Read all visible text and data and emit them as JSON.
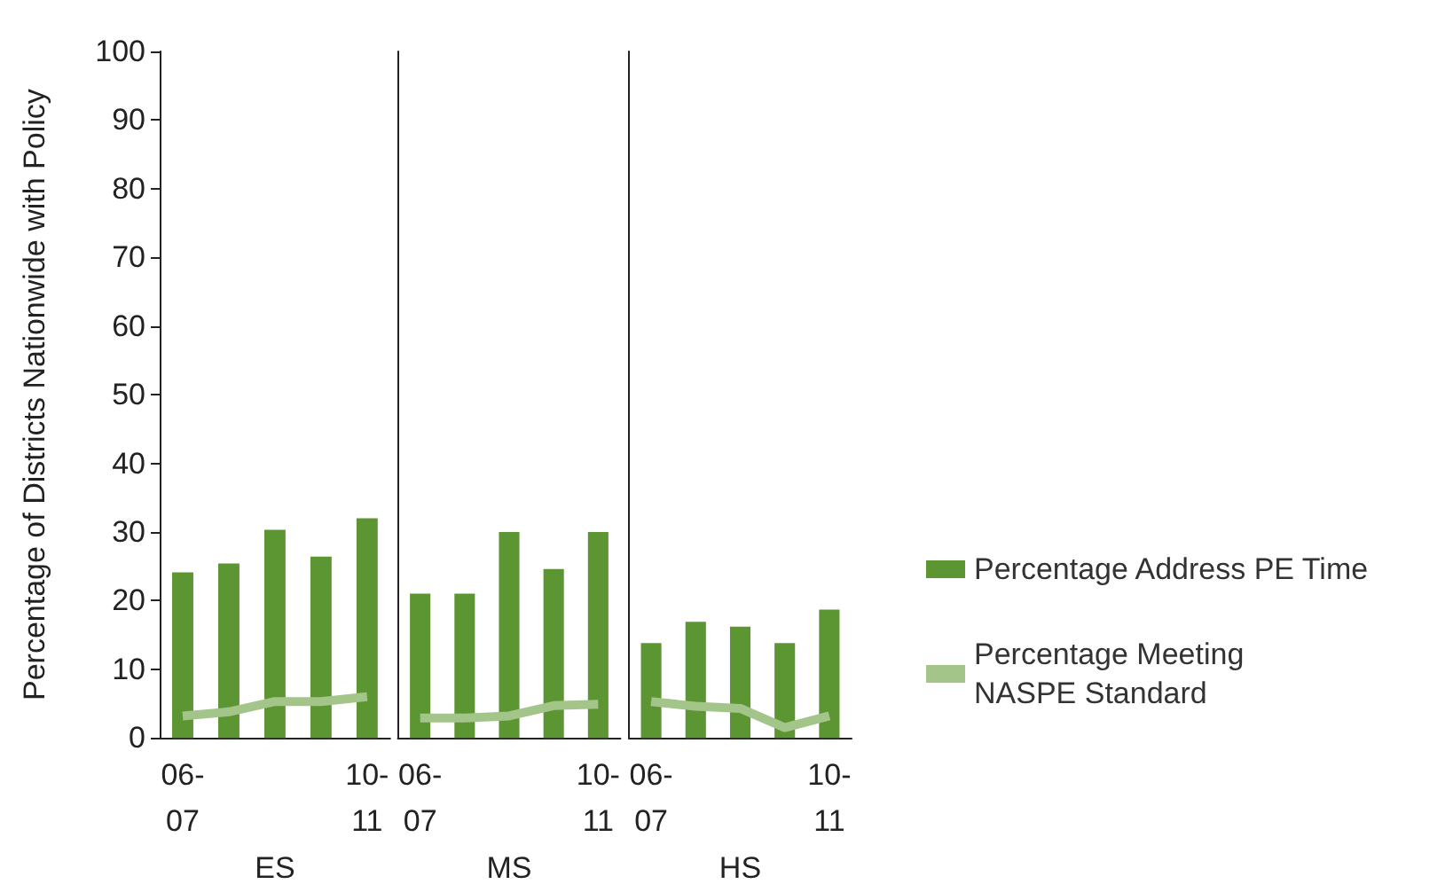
{
  "chart_data": [
    {
      "type": "bar",
      "xlabel": "ES",
      "ylabel": "Percentage of Districts Nationwide with Policy",
      "categories": [
        "06-07",
        null,
        null,
        null,
        "10-11"
      ],
      "ylim": [
        0,
        100
      ],
      "yticks": [
        0,
        10,
        20,
        30,
        40,
        50,
        60,
        70,
        80,
        90,
        100
      ],
      "grid": false,
      "legend": false,
      "series": [
        {
          "color": "#5c9632",
          "values": [
            24.1,
            25.4,
            30.3,
            26.4,
            32
          ]
        },
        {
          "type": "line",
          "color": "#a3c58a",
          "values": [
            3.2,
            3.8,
            5.3,
            5.3,
            6.0
          ]
        }
      ]
    },
    {
      "type": "bar",
      "xlabel": "MS",
      "categories": [
        "06-07",
        null,
        null,
        null,
        "10-11"
      ],
      "ylim": [
        0,
        100
      ],
      "yticks": [
        0,
        10,
        20,
        30,
        40,
        50,
        60,
        70,
        80,
        90,
        100
      ],
      "tick_labels": "x",
      "grid": false,
      "legend": false,
      "series": [
        {
          "color": "#5c9632",
          "values": [
            21,
            21,
            30,
            24.6,
            30
          ]
        },
        {
          "type": "line",
          "color": "#a3c58a",
          "values": [
            2.9,
            2.9,
            3.2,
            4.7,
            4.9
          ]
        }
      ]
    },
    {
      "type": "bar",
      "xlabel": "HS",
      "categories": [
        "06-07",
        null,
        null,
        null,
        "10-11"
      ],
      "ylim": [
        0,
        100
      ],
      "yticks": [
        0,
        10,
        20,
        30,
        40,
        50,
        60,
        70,
        80,
        90,
        100
      ],
      "tick_labels": "x",
      "grid": false,
      "legend": "right",
      "series": [
        {
          "name": "Percentage Address PE Time",
          "color": "#5c9632",
          "values": [
            13.8,
            16.9,
            16.2,
            13.8,
            18.7
          ]
        },
        {
          "type": "line",
          "name": "Percentage Meeting NASPE Standard",
          "color": "#a3c58a",
          "values": [
            5.3,
            4.6,
            4.3,
            1.5,
            3.2
          ]
        }
      ]
    }
  ]
}
